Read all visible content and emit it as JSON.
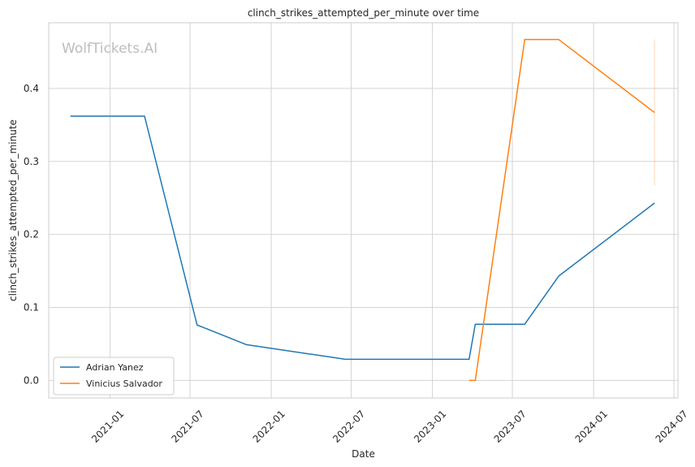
{
  "chart_data": {
    "type": "line",
    "title": "clinch_strikes_attempted_per_minute over time",
    "xlabel": "Date",
    "ylabel": "clinch_strikes_attempted_per_minute",
    "watermark": "WolfTickets.AI",
    "x_axis": {
      "type": "date",
      "range": [
        "2020-08-15",
        "2024-07-10"
      ],
      "ticks": [
        "2021-01",
        "2021-07",
        "2022-01",
        "2022-07",
        "2023-01",
        "2023-07",
        "2024-01",
        "2024-07"
      ]
    },
    "y_axis": {
      "range": [
        -0.024,
        0.49
      ],
      "ticks": [
        "0.0",
        "0.1",
        "0.2",
        "0.3",
        "0.4"
      ],
      "tick_values": [
        0.0,
        0.1,
        0.2,
        0.3,
        0.4
      ]
    },
    "grid": true,
    "legend_position": "lower-left",
    "series": [
      {
        "name": "Adrian Yanez",
        "color": "#1f77b4",
        "points": [
          {
            "x": "2020-10-03",
            "y": 0.362
          },
          {
            "x": "2021-03-20",
            "y": 0.362
          },
          {
            "x": "2021-07-17",
            "y": 0.076
          },
          {
            "x": "2021-11-06",
            "y": 0.049
          },
          {
            "x": "2022-06-18",
            "y": 0.029
          },
          {
            "x": "2023-03-25",
            "y": 0.029
          },
          {
            "x": "2023-04-08",
            "y": 0.077
          },
          {
            "x": "2023-07-29",
            "y": 0.077
          },
          {
            "x": "2023-10-14",
            "y": 0.143
          },
          {
            "x": "2024-05-18",
            "y": 0.243
          }
        ]
      },
      {
        "name": "Vinicius Salvador",
        "color": "#ff7f0e",
        "points": [
          {
            "x": "2023-03-25",
            "y": 0.0
          },
          {
            "x": "2023-04-08",
            "y": 0.0
          },
          {
            "x": "2023-07-29",
            "y": 0.467
          },
          {
            "x": "2023-10-14",
            "y": 0.467
          },
          {
            "x": "2024-05-18",
            "y": 0.367
          }
        ]
      }
    ],
    "error_band": {
      "series": "Vinicius Salvador",
      "x": "2024-05-18",
      "y_low": 0.267,
      "y_high": 0.467
    }
  }
}
